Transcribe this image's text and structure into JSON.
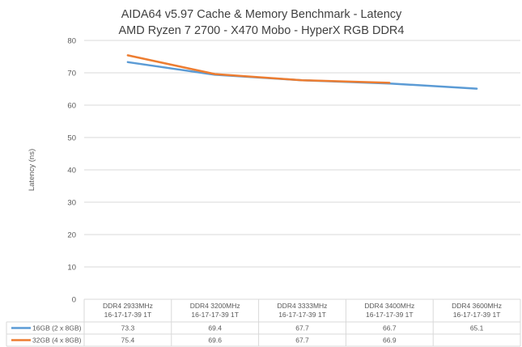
{
  "chart_data": {
    "type": "line",
    "title": "AIDA64 v5.97 Cache & Memory Benchmark - Latency",
    "subtitle": "AMD Ryzen 7 2700 - X470 Mobo - HyperX RGB DDR4",
    "ylabel": "Latency (ns)",
    "xlabel": "",
    "ylim": [
      0,
      80
    ],
    "yticks": [
      "0",
      "10",
      "20",
      "30",
      "40",
      "50",
      "60",
      "70",
      "80"
    ],
    "grid": true,
    "legend": "data-table",
    "categories": [
      {
        "line1": "DDR4 2933MHz",
        "line2": "16-17-17-39 1T"
      },
      {
        "line1": "DDR4 3200MHz",
        "line2": "16-17-17-39 1T"
      },
      {
        "line1": "DDR4 3333MHz",
        "line2": "16-17-17-39 1T"
      },
      {
        "line1": "DDR4 3400MHz",
        "line2": "16-17-17-39 1T"
      },
      {
        "line1": "DDR4 3600MHz",
        "line2": "16-17-17-39 1T"
      }
    ],
    "series": [
      {
        "name": "16GB (2 x 8GB)",
        "color": "#5B9BD5",
        "values": [
          73.3,
          69.4,
          67.7,
          66.7,
          65.1
        ],
        "labels": [
          "73.3",
          "69.4",
          "67.7",
          "66.7",
          "65.1"
        ]
      },
      {
        "name": "32GB (4 x 8GB)",
        "color": "#ED7D31",
        "values": [
          75.4,
          69.6,
          67.7,
          66.9,
          null
        ],
        "labels": [
          "75.4",
          "69.6",
          "67.7",
          "66.9",
          ""
        ]
      }
    ]
  }
}
